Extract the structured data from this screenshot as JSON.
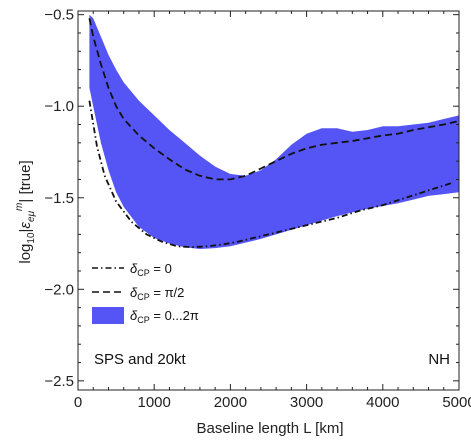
{
  "chart_data": {
    "type": "area",
    "xlabel": "Baseline length L [km]",
    "ylabel": "log10|εeμm| [true]",
    "ylabel_parts": {
      "prefix": "log",
      "sub10": "10",
      "eps": "ε",
      "sub_emu": "eμ",
      "sup_m": "m",
      "suffix": "| [true]",
      "bar": "|"
    },
    "xlim": [
      0,
      5000
    ],
    "ylim": [
      -2.55,
      -0.48
    ],
    "x_ticks": [
      0,
      1000,
      2000,
      3000,
      4000,
      5000
    ],
    "x_tick_labels": [
      "0",
      "1000",
      "2000",
      "3000",
      "4000",
      "5000"
    ],
    "y_ticks": [
      -2.5,
      -2.0,
      -1.5,
      -1.0,
      -0.5
    ],
    "y_tick_labels": [
      "−2.5",
      "−2.0",
      "−1.5",
      "−1.0",
      "−0.5"
    ],
    "grid": false,
    "legend_placement": "lower-left",
    "annotations": {
      "left": "SPS and 20kt",
      "right": "NH"
    },
    "colors": {
      "band": "#5555f5",
      "line": "#111111"
    },
    "series": [
      {
        "name": "δCP = 0",
        "legend": {
          "sym": "δ",
          "sub": "CP",
          "rest": " = 0"
        },
        "style": "dashdot",
        "x": [
          150,
          250,
          350,
          500,
          700,
          900,
          1100,
          1300,
          1500,
          1700,
          1900,
          2100,
          2300,
          2500,
          2800,
          3100,
          3400,
          3700,
          4000,
          4300,
          4600,
          4900
        ],
        "y": [
          -0.97,
          -1.22,
          -1.38,
          -1.52,
          -1.63,
          -1.7,
          -1.74,
          -1.765,
          -1.77,
          -1.765,
          -1.755,
          -1.74,
          -1.72,
          -1.7,
          -1.67,
          -1.64,
          -1.61,
          -1.57,
          -1.54,
          -1.5,
          -1.46,
          -1.42
        ]
      },
      {
        "name": "δCP = π/2",
        "legend": {
          "sym": "δ",
          "sub": "CP",
          "rest": " = π/2"
        },
        "style": "dashed",
        "x": [
          150,
          200,
          300,
          400,
          500,
          600,
          800,
          1000,
          1200,
          1400,
          1600,
          1800,
          2000,
          2200,
          2400,
          2600,
          2800,
          3000,
          3200,
          3400,
          3600,
          3800,
          4000,
          4200,
          4400,
          4600,
          4800,
          5000
        ],
        "y": [
          -0.52,
          -0.62,
          -0.77,
          -0.9,
          -1.0,
          -1.07,
          -1.16,
          -1.23,
          -1.29,
          -1.345,
          -1.38,
          -1.4,
          -1.4,
          -1.38,
          -1.34,
          -1.3,
          -1.26,
          -1.23,
          -1.21,
          -1.2,
          -1.19,
          -1.175,
          -1.16,
          -1.15,
          -1.13,
          -1.115,
          -1.1,
          -1.08
        ]
      },
      {
        "name": "δCP = 0...2π",
        "legend": {
          "sym": "δ",
          "sub": "CP",
          "rest": " = 0...2π"
        },
        "style": "band",
        "x": [
          150,
          200,
          300,
          400,
          500,
          600,
          800,
          1000,
          1200,
          1400,
          1600,
          1800,
          2000,
          2200,
          2400,
          2600,
          2800,
          3000,
          3200,
          3400,
          3600,
          3800,
          4000,
          4200,
          4400,
          4600,
          4800,
          5000
        ],
        "upper": [
          -0.5,
          -0.52,
          -0.62,
          -0.72,
          -0.8,
          -0.87,
          -0.97,
          -1.05,
          -1.13,
          -1.2,
          -1.27,
          -1.33,
          -1.37,
          -1.38,
          -1.35,
          -1.29,
          -1.21,
          -1.15,
          -1.12,
          -1.12,
          -1.14,
          -1.13,
          -1.11,
          -1.11,
          -1.1,
          -1.09,
          -1.07,
          -1.05
        ],
        "lower": [
          -0.9,
          -1.0,
          -1.2,
          -1.35,
          -1.47,
          -1.55,
          -1.66,
          -1.72,
          -1.75,
          -1.77,
          -1.78,
          -1.775,
          -1.765,
          -1.745,
          -1.725,
          -1.7,
          -1.675,
          -1.65,
          -1.625,
          -1.6,
          -1.58,
          -1.56,
          -1.545,
          -1.53,
          -1.51,
          -1.49,
          -1.48,
          -1.47
        ]
      }
    ]
  }
}
